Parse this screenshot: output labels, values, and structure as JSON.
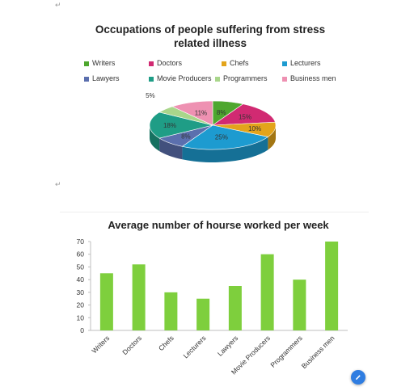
{
  "paragraph_mark": "↵",
  "chart_data": [
    {
      "type": "pie",
      "title": "Occupations of people suffering from stress related illness",
      "title_lines": [
        "Occupations of people suffering from stress",
        "related illness"
      ],
      "categories": [
        "Writers",
        "Doctors",
        "Chefs",
        "Lecturers",
        "Lawyers",
        "Movie Producers",
        "Programmers",
        "Business men"
      ],
      "values": [
        8,
        15,
        10,
        25,
        8,
        18,
        5,
        11
      ],
      "labels": [
        "8%",
        "15%",
        "10%",
        "25%",
        "8%",
        "18%",
        "5%",
        "11%"
      ],
      "colors": [
        "#4ea72e",
        "#d12a72",
        "#e3a41b",
        "#1d9bd0",
        "#5b6fae",
        "#1f9d86",
        "#a9d68b",
        "#ee91b2"
      ],
      "style": "3d",
      "legend_position": "top"
    },
    {
      "type": "bar",
      "title": "Average number of hourse worked per week",
      "categories": [
        "Writers",
        "Doctors",
        "Chefs",
        "Lecturers",
        "Lawyers",
        "Movie Producers",
        "Programmers",
        "Business men"
      ],
      "values": [
        45,
        52,
        30,
        25,
        35,
        60,
        40,
        70
      ],
      "ylim": [
        0,
        70
      ],
      "yticks": [
        0,
        10,
        20,
        30,
        40,
        50,
        60,
        70
      ],
      "color": "#7ecf3d",
      "grid": false
    }
  ]
}
